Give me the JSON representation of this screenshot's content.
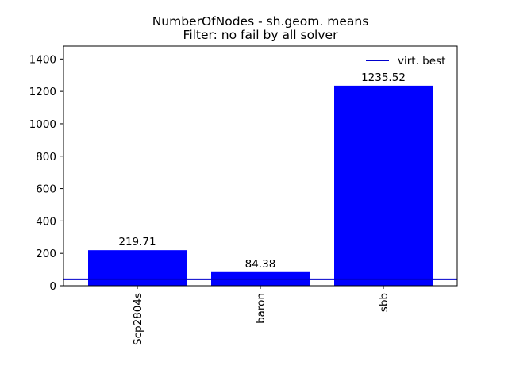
{
  "chart_data": {
    "type": "bar",
    "title_line1": "NumberOfNodes - sh.geom. means",
    "title_line2": "Filter: no fail by all solver",
    "categories": [
      "Scp2804s",
      "baron",
      "sbb"
    ],
    "values": [
      219.71,
      84.38,
      1235.52
    ],
    "value_labels": [
      "219.71",
      "84.38",
      "1235.52"
    ],
    "bar_color": "#0000ff",
    "ylim": [
      0,
      1480
    ],
    "yticks": [
      0,
      200,
      400,
      600,
      800,
      1000,
      1200,
      1400
    ],
    "reference_line": {
      "name": "virt. best",
      "value": 40,
      "color": "#0000cc"
    },
    "legend_position": "top-right",
    "grid": false
  }
}
